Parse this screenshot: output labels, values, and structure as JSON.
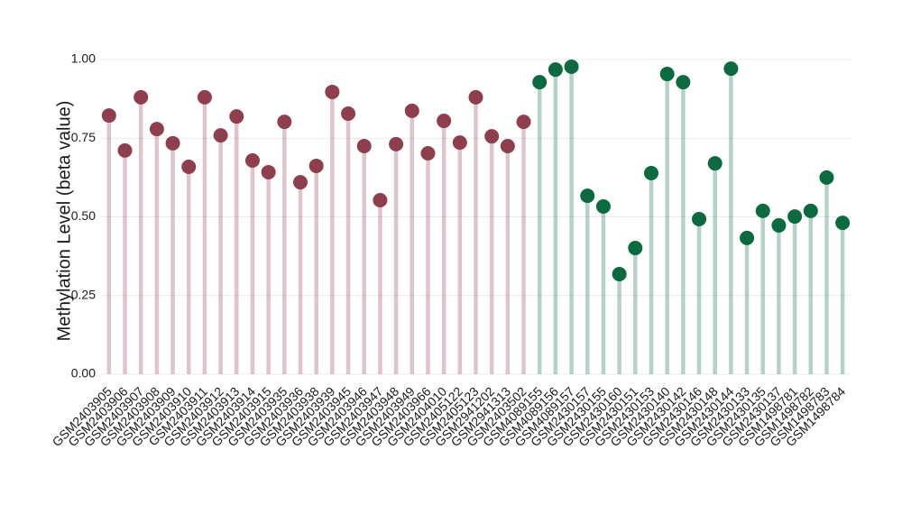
{
  "chart_data": {
    "type": "lollipop",
    "y_label": "Methylation Level (beta value)",
    "categories": [
      "GSM2403905",
      "GSM2403906",
      "GSM2403907",
      "GSM2403908",
      "GSM2403909",
      "GSM2403910",
      "GSM2403911",
      "GSM2403912",
      "GSM2403913",
      "GSM2403914",
      "GSM2403915",
      "GSM2403935",
      "GSM2403936",
      "GSM2403938",
      "GSM2403939",
      "GSM2403945",
      "GSM2403946",
      "GSM2403947",
      "GSM2403948",
      "GSM2403949",
      "GSM2403966",
      "GSM2404010",
      "GSM2405122",
      "GSM2405123",
      "GSM2941202",
      "GSM2941313",
      "GSM2403502",
      "GSM4089155",
      "GSM4089156",
      "GSM4089157",
      "GSM2430157",
      "GSM2430155",
      "GSM2430160",
      "GSM2430151",
      "GSM2430153",
      "GSM2430140",
      "GSM2430142",
      "GSM2430146",
      "GSM2430148",
      "GSM2430144",
      "GSM2430133",
      "GSM2430135",
      "GSM2430137",
      "GSM1498781",
      "GSM1498782",
      "GSM1498783",
      "GSM1498784"
    ],
    "values": [
      0.822,
      0.711,
      0.88,
      0.779,
      0.734,
      0.659,
      0.88,
      0.759,
      0.819,
      0.679,
      0.642,
      0.802,
      0.61,
      0.662,
      0.897,
      0.828,
      0.725,
      0.553,
      0.731,
      0.837,
      0.702,
      0.805,
      0.736,
      0.88,
      0.756,
      0.725,
      0.802,
      0.928,
      0.968,
      0.977,
      0.567,
      0.533,
      0.318,
      0.401,
      0.639,
      0.954,
      0.928,
      0.493,
      0.67,
      0.971,
      0.433,
      0.519,
      0.473,
      0.501,
      0.519,
      0.625,
      0.481
    ],
    "colors": [
      "#8f3e4e",
      "#8f3e4e",
      "#8f3e4e",
      "#8f3e4e",
      "#8f3e4e",
      "#8f3e4e",
      "#8f3e4e",
      "#8f3e4e",
      "#8f3e4e",
      "#8f3e4e",
      "#8f3e4e",
      "#8f3e4e",
      "#8f3e4e",
      "#8f3e4e",
      "#8f3e4e",
      "#8f3e4e",
      "#8f3e4e",
      "#8f3e4e",
      "#8f3e4e",
      "#8f3e4e",
      "#8f3e4e",
      "#8f3e4e",
      "#8f3e4e",
      "#8f3e4e",
      "#8f3e4e",
      "#8f3e4e",
      "#8f3e4e",
      "#0b6a40",
      "#0b6a40",
      "#0b6a40",
      "#0b6a40",
      "#0b6a40",
      "#0b6a40",
      "#0b6a40",
      "#0b6a40",
      "#0b6a40",
      "#0b6a40",
      "#0b6a40",
      "#0b6a40",
      "#0b6a40",
      "#0b6a40",
      "#0b6a40",
      "#0b6a40",
      "#0b6a40",
      "#0b6a40",
      "#0b6a40",
      "#0b6a40"
    ],
    "ylim": [
      0,
      1
    ],
    "yticks": [
      {
        "value": 0,
        "label": "0.00"
      },
      {
        "value": 0.25,
        "label": "0.25"
      },
      {
        "value": 0.5,
        "label": "0.50"
      },
      {
        "value": 0.75,
        "label": "0.75"
      },
      {
        "value": 1,
        "label": "1.00"
      }
    ],
    "grid": true
  }
}
